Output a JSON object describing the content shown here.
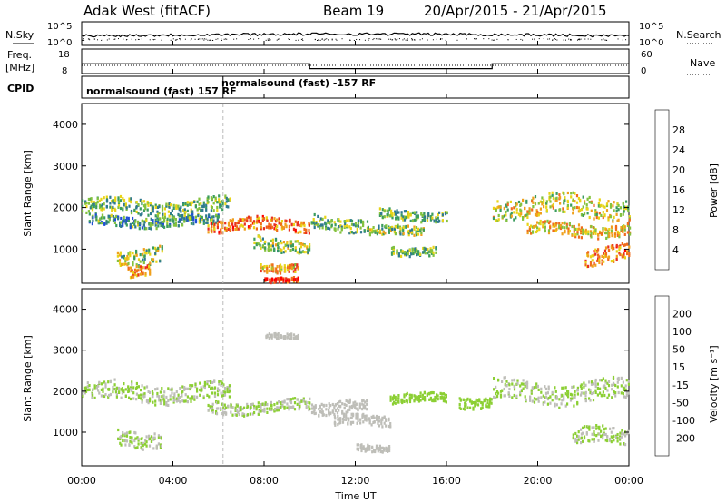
{
  "header": {
    "title": "Adak West (fitACF)",
    "beam": "Beam 19",
    "date_range": "20/Apr/2015 - 21/Apr/2015"
  },
  "panels": {
    "nsky": {
      "left_label": "N.Sky",
      "right_label": "N.Search",
      "left_ticks": [
        "10^5",
        "10^0"
      ],
      "right_ticks": [
        "10^5",
        "10^0"
      ]
    },
    "freq": {
      "left_label_1": "Freq.",
      "left_label_2": "[MHz]",
      "right_label": "Nave",
      "left_ticks": [
        "18",
        "8"
      ],
      "right_ticks": [
        "60",
        "0"
      ]
    },
    "cpid": {
      "label": "CPID",
      "segments": [
        "normalsound (fast) 157 RF",
        "normalsound (fast) -157 RF"
      ]
    },
    "power": {
      "ylabel": "Slant Range [km]",
      "colorbar_label": "Power [dB]",
      "colorbar_ticks": [
        "28",
        "24",
        "20",
        "16",
        "12",
        "8",
        "4"
      ],
      "colorbar_colors": [
        "#0000ff",
        "#1f4fd6",
        "#2f7a8f",
        "#3b9c5e",
        "#84c23e",
        "#e8d418",
        "#f0a01c",
        "#f06c1c",
        "#e83020",
        "#ff0000"
      ]
    },
    "velocity": {
      "ylabel": "Slant Range [km]",
      "colorbar_label": "Velocity [m s⁻¹]",
      "colorbar_ticks": [
        "200",
        "100",
        "50",
        "15",
        "-15",
        "-50",
        "-100",
        "-200"
      ],
      "colorbar_colors": [
        "#2030b8",
        "#2a55c8",
        "#3a8a7a",
        "#4ea23c",
        "#8ccf34",
        "#bebeb8",
        "#f0b020",
        "#f08a10",
        "#f05a10",
        "#e81c14"
      ]
    }
  },
  "axes": {
    "xlabel": "Time UT",
    "x_ticks": [
      "00:00",
      "04:00",
      "08:00",
      "12:00",
      "16:00",
      "20:00",
      "00:00"
    ],
    "y_ticks": [
      "4000",
      "3000",
      "2000",
      "1000"
    ]
  },
  "chart_data": {
    "type": "heatmap",
    "title": "Adak West (fitACF)",
    "xlabel": "Time UT",
    "ylabel": "Slant Range [km]",
    "xlim": [
      0,
      24
    ],
    "ylim": [
      180,
      4500
    ],
    "series": [
      {
        "name": "Power [dB]",
        "bands": [
          {
            "t0": 0.0,
            "t1": 6.5,
            "r_center": 2050,
            "r_half": 180,
            "level": 12
          },
          {
            "t0": 0.3,
            "t1": 6.0,
            "r_center": 1700,
            "r_half": 120,
            "level": 10
          },
          {
            "t0": 1.5,
            "t1": 3.5,
            "r_center": 900,
            "r_half": 200,
            "level": 14
          },
          {
            "t0": 2.0,
            "t1": 3.0,
            "r_center": 500,
            "r_half": 120,
            "level": 22
          },
          {
            "t0": 5.5,
            "t1": 10.0,
            "r_center": 1600,
            "r_half": 150,
            "level": 22
          },
          {
            "t0": 7.5,
            "t1": 10.0,
            "r_center": 1150,
            "r_half": 160,
            "level": 14
          },
          {
            "t0": 7.8,
            "t1": 9.5,
            "r_center": 600,
            "r_half": 100,
            "level": 20
          },
          {
            "t0": 8.0,
            "t1": 9.5,
            "r_center": 300,
            "r_half": 60,
            "level": 26
          },
          {
            "t0": 10.0,
            "t1": 12.5,
            "r_center": 1650,
            "r_half": 160,
            "level": 12
          },
          {
            "t0": 12.5,
            "t1": 15.0,
            "r_center": 1450,
            "r_half": 110,
            "level": 14
          },
          {
            "t0": 13.0,
            "t1": 16.0,
            "r_center": 1850,
            "r_half": 120,
            "level": 12
          },
          {
            "t0": 13.5,
            "t1": 15.5,
            "r_center": 1000,
            "r_half": 100,
            "level": 12
          },
          {
            "t0": 18.0,
            "t1": 24.0,
            "r_center": 2050,
            "r_half": 250,
            "level": 16
          },
          {
            "t0": 19.5,
            "t1": 24.0,
            "r_center": 1500,
            "r_half": 150,
            "level": 18
          },
          {
            "t0": 22.0,
            "t1": 24.0,
            "r_center": 900,
            "r_half": 200,
            "level": 22
          }
        ]
      },
      {
        "name": "Velocity [m s⁻¹]",
        "bands": [
          {
            "t0": 0.0,
            "t1": 6.5,
            "r_center": 2000,
            "r_half": 220,
            "level": 0
          },
          {
            "t0": 1.5,
            "t1": 3.5,
            "r_center": 900,
            "r_half": 200,
            "level": 0
          },
          {
            "t0": 5.5,
            "t1": 10.0,
            "r_center": 1650,
            "r_half": 150,
            "level": 0
          },
          {
            "t0": 8.0,
            "t1": 9.5,
            "r_center": 3350,
            "r_half": 60,
            "level": -40
          },
          {
            "t0": 10.0,
            "t1": 12.5,
            "r_center": 1650,
            "r_half": 150,
            "level": -30
          },
          {
            "t0": 11.0,
            "t1": 13.5,
            "r_center": 1300,
            "r_half": 130,
            "level": -40
          },
          {
            "t0": 12.0,
            "t1": 13.5,
            "r_center": 650,
            "r_half": 80,
            "level": -40
          },
          {
            "t0": 13.5,
            "t1": 16.0,
            "r_center": 1850,
            "r_half": 110,
            "level": 40
          },
          {
            "t0": 16.5,
            "t1": 18.0,
            "r_center": 1800,
            "r_half": 150,
            "level": 20
          },
          {
            "t0": 18.0,
            "t1": 24.0,
            "r_center": 2000,
            "r_half": 250,
            "level": 0
          },
          {
            "t0": 21.5,
            "t1": 24.0,
            "r_center": 900,
            "r_half": 200,
            "level": 0
          }
        ]
      }
    ],
    "freq_mhz": [
      {
        "t0": 0.0,
        "t1": 10.0,
        "value": 12
      },
      {
        "t0": 10.0,
        "t1": 18.0,
        "value": 10
      },
      {
        "t0": 18.0,
        "t1": 24.0,
        "value": 12
      }
    ],
    "nave": 20,
    "cpid_change_hours": [
      6.2
    ]
  }
}
